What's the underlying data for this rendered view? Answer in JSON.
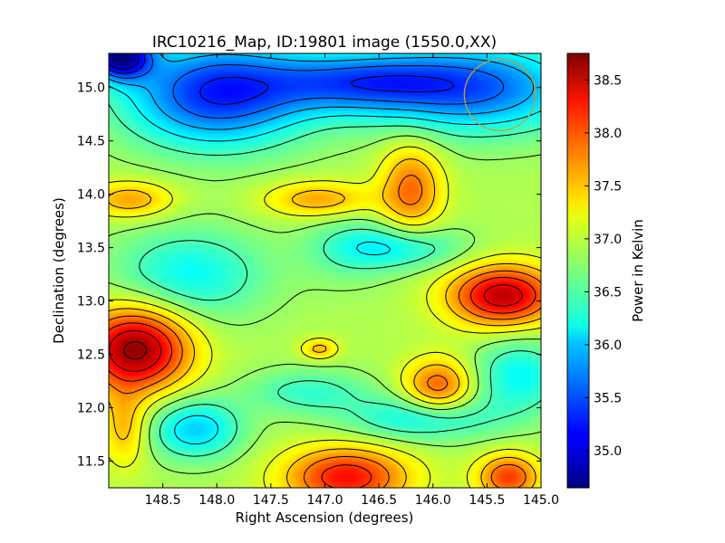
{
  "chart_data": {
    "type": "heatmap",
    "title": "IRC10216_Map, ID:19801 image (1550.0,XX)",
    "xlabel": "Right Ascension (degrees)",
    "ylabel": "Declination (degrees)",
    "colorbar_label": "Power in Kelvin",
    "xlim": [
      149.0,
      145.0
    ],
    "ylim": [
      11.25,
      15.32
    ],
    "x_ticks": [
      148.5,
      148.0,
      147.5,
      147.0,
      146.5,
      146.0,
      145.5,
      145.0
    ],
    "x_tick_labels": [
      "148.5",
      "148.0",
      "147.5",
      "147.0",
      "146.5",
      "146.0",
      "145.5",
      "145.0"
    ],
    "y_ticks": [
      11.5,
      12.0,
      12.5,
      13.0,
      13.5,
      14.0,
      14.5,
      15.0
    ],
    "y_tick_labels": [
      "11.5",
      "12.0",
      "12.5",
      "13.0",
      "13.5",
      "14.0",
      "14.5",
      "15.0"
    ],
    "clim": [
      34.65,
      38.75
    ],
    "colorbar_ticks": [
      35.0,
      35.5,
      36.0,
      36.5,
      37.0,
      37.5,
      38.0,
      38.5
    ],
    "colorbar_tick_labels": [
      "35.0",
      "35.5",
      "36.0",
      "36.5",
      "37.0",
      "37.5",
      "38.0",
      "38.5"
    ],
    "colormap": "jet",
    "grid": false,
    "contour_color": "#000000",
    "contour_levels": [
      35.0,
      35.3,
      35.6,
      35.9,
      36.2,
      36.5,
      36.8,
      37.1,
      37.4,
      37.7,
      38.0,
      38.3,
      38.6
    ],
    "baseline": 36.9,
    "features": [
      {
        "ra": 148.75,
        "dec": 12.55,
        "peak": 38.7,
        "sra": 0.35,
        "sdec": 0.28
      },
      {
        "ra": 145.35,
        "dec": 13.05,
        "peak": 38.5,
        "sra": 0.35,
        "sdec": 0.2
      },
      {
        "ra": 146.8,
        "dec": 11.35,
        "peak": 38.2,
        "sra": 0.4,
        "sdec": 0.2
      },
      {
        "ra": 145.3,
        "dec": 11.35,
        "peak": 38.0,
        "sra": 0.2,
        "sdec": 0.15
      },
      {
        "ra": 145.95,
        "dec": 12.2,
        "peak": 37.9,
        "sra": 0.22,
        "sdec": 0.18
      },
      {
        "ra": 146.2,
        "dec": 14.05,
        "peak": 37.8,
        "sra": 0.2,
        "sdec": 0.3
      },
      {
        "ra": 147.05,
        "dec": 13.95,
        "peak": 37.6,
        "sra": 0.35,
        "sdec": 0.12
      },
      {
        "ra": 148.8,
        "dec": 13.95,
        "peak": 37.6,
        "sra": 0.28,
        "sdec": 0.12
      },
      {
        "ra": 148.85,
        "dec": 11.8,
        "peak": 37.5,
        "sra": 0.15,
        "sdec": 0.25
      },
      {
        "ra": 147.05,
        "dec": 12.55,
        "peak": 37.5,
        "sra": 0.12,
        "sdec": 0.07
      },
      {
        "ra": 148.0,
        "dec": 14.95,
        "peak": 35.3,
        "sra": 0.6,
        "sdec": 0.35
      },
      {
        "ra": 148.9,
        "dec": 15.3,
        "peak": 34.8,
        "sra": 0.2,
        "sdec": 0.15
      },
      {
        "ra": 145.6,
        "dec": 15.0,
        "peak": 35.6,
        "sra": 0.7,
        "sdec": 0.3
      },
      {
        "ra": 146.7,
        "dec": 15.05,
        "peak": 35.8,
        "sra": 0.6,
        "sdec": 0.2
      },
      {
        "ra": 148.2,
        "dec": 11.8,
        "peak": 36.0,
        "sra": 0.3,
        "sdec": 0.2
      },
      {
        "ra": 148.25,
        "dec": 13.25,
        "peak": 36.2,
        "sra": 0.5,
        "sdec": 0.3
      },
      {
        "ra": 146.1,
        "dec": 11.9,
        "peak": 36.2,
        "sra": 0.5,
        "sdec": 0.15
      },
      {
        "ra": 146.3,
        "dec": 13.5,
        "peak": 36.2,
        "sra": 0.4,
        "sdec": 0.15
      },
      {
        "ra": 145.2,
        "dec": 12.3,
        "peak": 36.2,
        "sra": 0.3,
        "sdec": 0.25
      },
      {
        "ra": 147.15,
        "dec": 12.15,
        "peak": 36.4,
        "sra": 0.4,
        "sdec": 0.15
      },
      {
        "ra": 146.8,
        "dec": 13.5,
        "peak": 36.6,
        "sra": 0.3,
        "sdec": 0.25
      }
    ],
    "beam_circle": {
      "ra": 145.38,
      "dec": 14.93,
      "radius_deg": 0.33,
      "color": "#c8a030"
    }
  }
}
